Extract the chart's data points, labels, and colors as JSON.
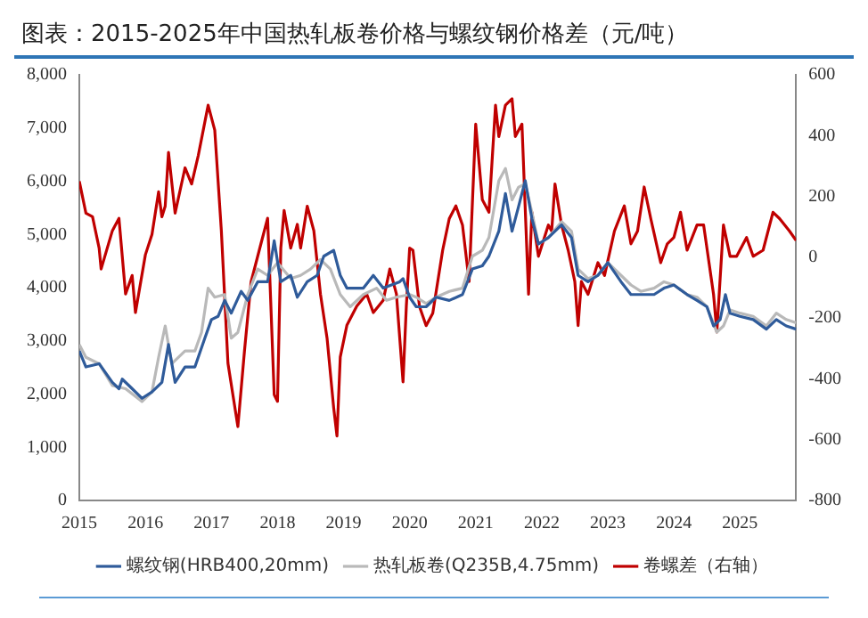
{
  "chart_data": {
    "type": "line",
    "title": "图表：2015-2025年中国热轧板卷价格与螺纹钢价格差（元/吨）",
    "xlim": [
      2015,
      2025.85
    ],
    "xticks": [
      2015,
      2016,
      2017,
      2018,
      2019,
      2020,
      2021,
      2022,
      2023,
      2024,
      2025
    ],
    "ylim": [
      0,
      8000
    ],
    "yticks": [
      {
        "value": 0,
        "label": "0"
      },
      {
        "value": 1000,
        "label": "1,000"
      },
      {
        "value": 2000,
        "label": "2,000"
      },
      {
        "value": 3000,
        "label": "3,000"
      },
      {
        "value": 4000,
        "label": "4,000"
      },
      {
        "value": 5000,
        "label": "5,000"
      },
      {
        "value": 6000,
        "label": "6,000"
      },
      {
        "value": 7000,
        "label": "7,000"
      },
      {
        "value": 8000,
        "label": "8,000"
      }
    ],
    "y2lim": [
      -800,
      600
    ],
    "y2ticks": [
      -800,
      -600,
      -400,
      -200,
      0,
      200,
      400,
      600
    ],
    "legend": "bottom",
    "grid": false,
    "marker": "none",
    "series": [
      {
        "name": "螺纹钢(HRB400,20mm)",
        "color": "#2f5b9a",
        "x": [
          2015,
          2015.1,
          2015.3,
          2015.5,
          2015.6,
          2015.65,
          2015.8,
          2015.95,
          2016.1,
          2016.25,
          2016.35,
          2016.45,
          2016.6,
          2016.75,
          2016.9,
          2017,
          2017.1,
          2017.2,
          2017.3,
          2017.45,
          2017.55,
          2017.7,
          2017.85,
          2017.95,
          2018.05,
          2018.2,
          2018.3,
          2018.45,
          2018.6,
          2018.7,
          2018.85,
          2018.95,
          2019.05,
          2019.3,
          2019.45,
          2019.6,
          2019.85,
          2019.9,
          2020,
          2020.1,
          2020.25,
          2020.4,
          2020.6,
          2020.8,
          2020.95,
          2021.1,
          2021.2,
          2021.35,
          2021.45,
          2021.55,
          2021.65,
          2021.75,
          2021.85,
          2021.95,
          2022.1,
          2022.3,
          2022.45,
          2022.55,
          2022.7,
          2022.85,
          2023,
          2023.2,
          2023.35,
          2023.5,
          2023.7,
          2023.85,
          2024,
          2024.2,
          2024.35,
          2024.5,
          2024.6,
          2024.7,
          2024.78,
          2024.85,
          2025,
          2025.2,
          2025.4,
          2025.55,
          2025.7,
          2025.85
        ],
        "values": [
          2810,
          2510,
          2570,
          2220,
          2100,
          2280,
          2100,
          1920,
          2040,
          2220,
          2930,
          2220,
          2510,
          2510,
          3050,
          3400,
          3460,
          3760,
          3520,
          3930,
          3760,
          4110,
          4110,
          4880,
          4110,
          4230,
          3820,
          4110,
          4230,
          4590,
          4700,
          4230,
          3990,
          3990,
          4230,
          3990,
          4110,
          4170,
          3820,
          3640,
          3640,
          3820,
          3760,
          3870,
          4350,
          4410,
          4590,
          5060,
          5770,
          5060,
          5530,
          6010,
          5300,
          4820,
          4940,
          5180,
          4940,
          4230,
          4110,
          4230,
          4470,
          4110,
          3870,
          3870,
          3870,
          3990,
          4050,
          3870,
          3760,
          3640,
          3280,
          3400,
          3870,
          3520,
          3460,
          3400,
          3220,
          3400,
          3280,
          3220
        ]
      },
      {
        "name": "热轧板卷(Q235B,4.75mm)",
        "color": "#b9b9b9",
        "x": [
          2015,
          2015.1,
          2015.3,
          2015.5,
          2015.7,
          2015.95,
          2016.1,
          2016.2,
          2016.3,
          2016.4,
          2016.6,
          2016.75,
          2016.85,
          2016.95,
          2017.05,
          2017.2,
          2017.3,
          2017.4,
          2017.55,
          2017.7,
          2017.85,
          2018,
          2018.2,
          2018.35,
          2018.5,
          2018.65,
          2018.8,
          2018.95,
          2019.1,
          2019.3,
          2019.5,
          2019.65,
          2019.8,
          2020,
          2020.1,
          2020.25,
          2020.4,
          2020.6,
          2020.8,
          2020.95,
          2021.1,
          2021.2,
          2021.35,
          2021.45,
          2021.55,
          2021.65,
          2021.75,
          2021.85,
          2021.95,
          2022.1,
          2022.3,
          2022.45,
          2022.55,
          2022.7,
          2022.85,
          2023,
          2023.2,
          2023.35,
          2023.5,
          2023.7,
          2023.85,
          2024,
          2024.2,
          2024.35,
          2024.5,
          2024.65,
          2024.75,
          2024.85,
          2025,
          2025.2,
          2025.4,
          2025.55,
          2025.7,
          2025.85
        ],
        "values": [
          2930,
          2690,
          2570,
          2160,
          2100,
          1860,
          2040,
          2690,
          3280,
          2570,
          2810,
          2810,
          3160,
          3990,
          3820,
          3870,
          3050,
          3160,
          3870,
          4350,
          4230,
          4470,
          4170,
          4230,
          4350,
          4530,
          4350,
          3870,
          3640,
          3870,
          3990,
          3760,
          3820,
          3870,
          3820,
          3700,
          3820,
          3930,
          3990,
          4590,
          4700,
          4940,
          6010,
          6240,
          5650,
          5890,
          5950,
          5420,
          4820,
          4940,
          5240,
          5060,
          4350,
          4170,
          4230,
          4470,
          4230,
          4050,
          3930,
          3990,
          4110,
          4050,
          3870,
          3820,
          3640,
          3160,
          3280,
          3580,
          3520,
          3460,
          3280,
          3520,
          3400,
          3340
        ]
      },
      {
        "name": "卷螺差（右轴）",
        "color": "#c00000",
        "axis": "y2",
        "x": [
          2015,
          2015.1,
          2015.2,
          2015.3,
          2015.33,
          2015.5,
          2015.6,
          2015.7,
          2015.8,
          2015.85,
          2016,
          2016.1,
          2016.2,
          2016.25,
          2016.3,
          2016.35,
          2016.45,
          2016.6,
          2016.7,
          2016.8,
          2016.95,
          2017.05,
          2017.15,
          2017.25,
          2017.4,
          2017.5,
          2017.6,
          2017.75,
          2017.85,
          2017.95,
          2018,
          2018.05,
          2018.1,
          2018.2,
          2018.3,
          2018.35,
          2018.45,
          2018.55,
          2018.65,
          2018.75,
          2018.85,
          2018.9,
          2018.95,
          2019.05,
          2019.2,
          2019.35,
          2019.45,
          2019.6,
          2019.7,
          2019.8,
          2019.9,
          2019.95,
          2020,
          2020.05,
          2020.15,
          2020.25,
          2020.35,
          2020.5,
          2020.6,
          2020.7,
          2020.8,
          2020.9,
          2021,
          2021.1,
          2021.2,
          2021.3,
          2021.35,
          2021.45,
          2021.55,
          2021.6,
          2021.7,
          2021.8,
          2021.85,
          2021.95,
          2022.1,
          2022.15,
          2022.2,
          2022.3,
          2022.4,
          2022.5,
          2022.55,
          2022.6,
          2022.7,
          2022.85,
          2022.95,
          2023.1,
          2023.25,
          2023.35,
          2023.45,
          2023.55,
          2023.65,
          2023.8,
          2023.9,
          2024,
          2024.1,
          2024.2,
          2024.35,
          2024.45,
          2024.6,
          2024.65,
          2024.75,
          2024.85,
          2024.95,
          2025.1,
          2025.2,
          2025.35,
          2025.5,
          2025.6,
          2025.75,
          2025.85
        ],
        "values": [
          250,
          145,
          133,
          30,
          -39,
          87,
          128,
          -121,
          -60,
          -182,
          8,
          75,
          215,
          133,
          168,
          345,
          145,
          294,
          241,
          334,
          500,
          418,
          87,
          -349,
          -557,
          -308,
          -81,
          45,
          128,
          -452,
          -474,
          30,
          154,
          30,
          108,
          30,
          168,
          87,
          -121,
          -266,
          -495,
          -588,
          -328,
          -224,
          -161,
          -121,
          -182,
          -142,
          -39,
          -121,
          -410,
          -161,
          30,
          23,
          -163,
          -225,
          -184,
          23,
          127,
          169,
          106,
          -80,
          438,
          189,
          148,
          500,
          397,
          500,
          521,
          397,
          438,
          -122,
          148,
          3,
          106,
          86,
          241,
          106,
          23,
          -80,
          -225,
          -80,
          -122,
          -18,
          -60,
          86,
          169,
          44,
          86,
          231,
          127,
          -18,
          44,
          65,
          148,
          23,
          106,
          106,
          -122,
          -246,
          106,
          3,
          3,
          65,
          3,
          23,
          148,
          127,
          86,
          55
        ]
      }
    ]
  }
}
